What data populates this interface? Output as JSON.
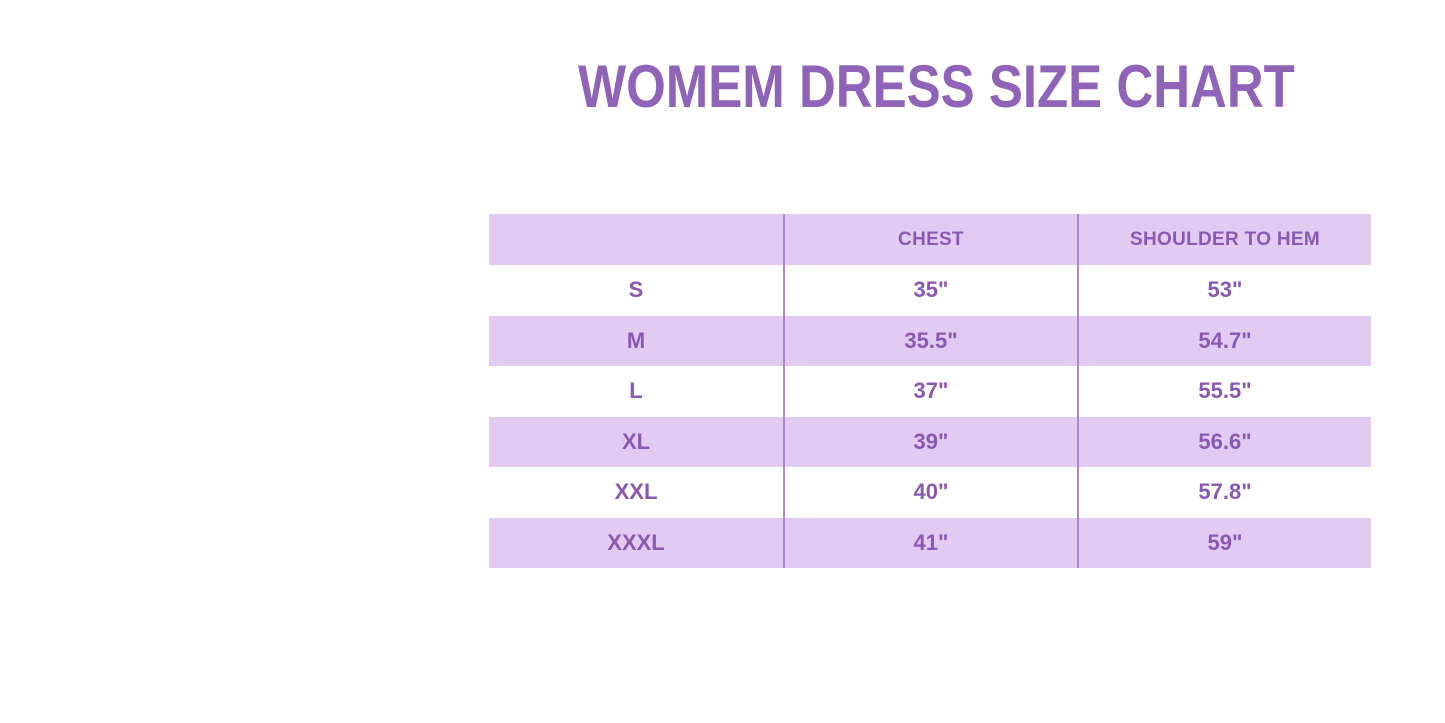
{
  "title": "WOMEM DRESS SIZE CHART",
  "colors": {
    "title_purple": "#8E63B8",
    "text_purple": "#8958B0",
    "row_lavender": "#E1CBF2",
    "divider_purple": "#AE87CC",
    "background": "#FFFFFF"
  },
  "chart_data": {
    "type": "table",
    "title": "WOMEM DRESS SIZE CHART",
    "columns": [
      "",
      "CHEST",
      "SHOULDER TO HEM"
    ],
    "rows": [
      {
        "size": "S",
        "chest": "35\"",
        "shoulder_to_hem": "53\""
      },
      {
        "size": "M",
        "chest": "35.5\"",
        "shoulder_to_hem": "54.7\""
      },
      {
        "size": "L",
        "chest": "37\"",
        "shoulder_to_hem": "55.5\""
      },
      {
        "size": "XL",
        "chest": "39\"",
        "shoulder_to_hem": "56.6\""
      },
      {
        "size": "XXL",
        "chest": "40\"",
        "shoulder_to_hem": "57.8\""
      },
      {
        "size": "XXXL",
        "chest": "41\"",
        "shoulder_to_hem": "59\""
      }
    ],
    "layout": {
      "zebra_striping": "header and even rows lavender, odd rows white",
      "column_alignment": "center",
      "grid": "vertical dividers only"
    }
  }
}
